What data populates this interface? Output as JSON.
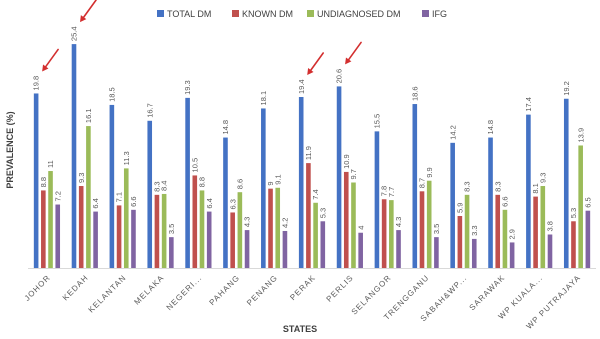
{
  "chart_data": {
    "type": "bar",
    "title": "",
    "xlabel": "STATES",
    "ylabel": "PREVALENCE (%)",
    "ylim": [
      0,
      27
    ],
    "grid": false,
    "legend_position": "top",
    "categories": [
      "JOHOR",
      "KEDAH",
      "KELANTAN",
      "MELAKA",
      "NEGERI...",
      "PAHANG",
      "PENANG",
      "PERAK",
      "PERLIS",
      "SELANGOR",
      "TRENGGANU",
      "SABAH&WP...",
      "SARAWAK",
      "WP KUALA...",
      "WP PUTRAJAYA"
    ],
    "series": [
      {
        "name": "TOTAL DM",
        "color": "#4472C4",
        "values": [
          19.8,
          25.4,
          18.5,
          16.7,
          19.3,
          14.8,
          18.1,
          19.4,
          20.6,
          15.5,
          18.6,
          14.2,
          14.8,
          17.4,
          19.2
        ]
      },
      {
        "name": "KNOWN DM",
        "color": "#C0504D",
        "values": [
          8.8,
          9.3,
          7.1,
          8.3,
          10.5,
          6.3,
          9,
          11.9,
          10.9,
          7.8,
          8.7,
          5.9,
          8.3,
          8.1,
          5.3
        ]
      },
      {
        "name": "UNDIAGNOSED DM",
        "color": "#9BBB59",
        "values": [
          11,
          16.1,
          11.3,
          8.4,
          8.8,
          8.6,
          9.1,
          7.4,
          9.7,
          7.7,
          9.9,
          8.3,
          6.6,
          9.3,
          13.9
        ]
      },
      {
        "name": "IFG",
        "color": "#8064A2",
        "values": [
          7.2,
          6.4,
          6.6,
          3.5,
          6.4,
          4.3,
          4.2,
          5.3,
          4,
          4.3,
          3.5,
          3.3,
          2.9,
          3.8,
          6.5
        ]
      }
    ],
    "annotations": [
      {
        "type": "arrow",
        "color": "#D32F2F",
        "category": "JOHOR",
        "series": "TOTAL DM"
      },
      {
        "type": "arrow",
        "color": "#D32F2F",
        "category": "KEDAH",
        "series": "TOTAL DM"
      },
      {
        "type": "arrow",
        "color": "#D32F2F",
        "category": "PERAK",
        "series": "TOTAL DM"
      },
      {
        "type": "arrow",
        "color": "#D32F2F",
        "category": "PERLIS",
        "series": "TOTAL DM"
      }
    ]
  }
}
